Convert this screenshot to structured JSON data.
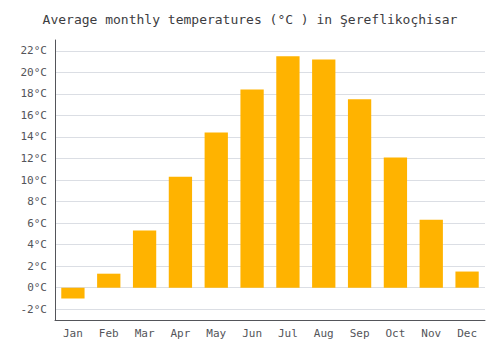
{
  "chart_data": {
    "type": "bar",
    "title": "Average monthly temperatures (°C ) in Şereflikoçhisar",
    "categories": [
      "Jan",
      "Feb",
      "Mar",
      "Apr",
      "May",
      "Jun",
      "Jul",
      "Aug",
      "Sep",
      "Oct",
      "Nov",
      "Dec"
    ],
    "values": [
      -1.0,
      1.3,
      5.3,
      10.3,
      14.4,
      18.4,
      21.5,
      21.2,
      17.5,
      12.1,
      6.3,
      1.5
    ],
    "color": "#FFB300",
    "ylim": [
      -3,
      23
    ],
    "yticks": [
      {
        "value": -2,
        "label": "-2°C"
      },
      {
        "value": 0,
        "label": "0°C"
      },
      {
        "value": 2,
        "label": "2°C"
      },
      {
        "value": 4,
        "label": "4°C"
      },
      {
        "value": 6,
        "label": "6°C"
      },
      {
        "value": 8,
        "label": "8°C"
      },
      {
        "value": 10,
        "label": "10°C"
      },
      {
        "value": 12,
        "label": "12°C"
      },
      {
        "value": 14,
        "label": "14°C"
      },
      {
        "value": 16,
        "label": "16°C"
      },
      {
        "value": 18,
        "label": "18°C"
      },
      {
        "value": 20,
        "label": "20°C"
      },
      {
        "value": 22,
        "label": "22°C"
      }
    ],
    "grid": true
  }
}
